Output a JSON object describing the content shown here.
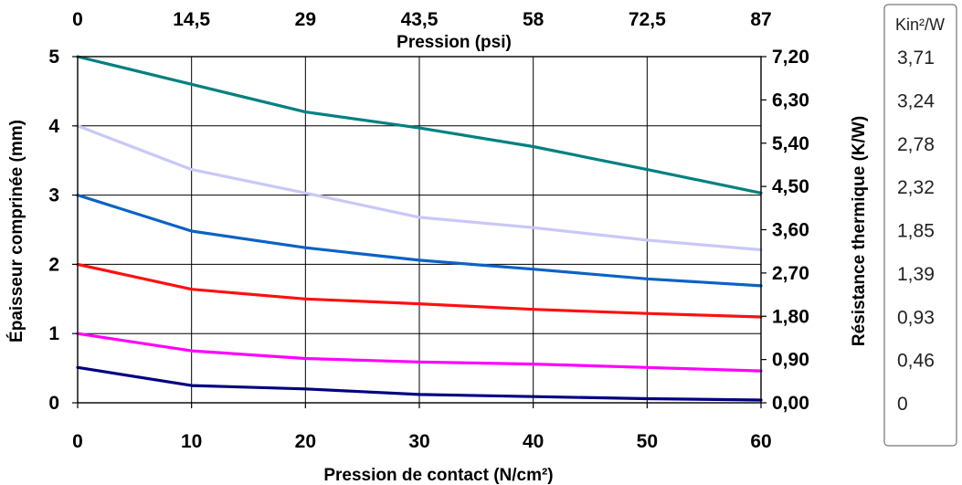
{
  "chart_data": {
    "type": "line",
    "xlabel_bottom": "Pression de contact  (N/cm²)",
    "xlabel_top": "Pression (psi)",
    "ylabel_left": "Épaisseur comprinée (mm)",
    "ylabel_right": "Résistance thermique (K/W)",
    "x_ticks": [
      "0",
      "10",
      "20",
      "30",
      "40",
      "50",
      "60"
    ],
    "x_top_ticks": [
      "0",
      "14,5",
      "29",
      "43,5",
      "58",
      "72,5",
      "87"
    ],
    "y_left_ticks": [
      "0",
      "1",
      "2",
      "3",
      "4",
      "5"
    ],
    "y_right_ticks": [
      "0,00",
      "0,90",
      "1,80",
      "2,70",
      "3,60",
      "4,50",
      "5,40",
      "6,30",
      "7,20"
    ],
    "xlim": [
      0,
      60
    ],
    "ylim": [
      0,
      5
    ],
    "grid": true,
    "series": [
      {
        "color": "#008080",
        "x": [
          0,
          10,
          20,
          30,
          40,
          50,
          60
        ],
        "y": [
          5.0,
          4.6,
          4.2,
          3.97,
          3.7,
          3.37,
          3.03
        ]
      },
      {
        "color": "#c8c8f8",
        "x": [
          0,
          10,
          20,
          30,
          40,
          50,
          60
        ],
        "y": [
          4.0,
          3.37,
          3.03,
          2.68,
          2.53,
          2.35,
          2.21
        ]
      },
      {
        "color": "#0b62c4",
        "x": [
          0,
          10,
          20,
          30,
          40,
          50,
          60
        ],
        "y": [
          3.0,
          2.48,
          2.24,
          2.06,
          1.93,
          1.79,
          1.69
        ]
      },
      {
        "color": "#ff1010",
        "x": [
          0,
          10,
          20,
          30,
          40,
          50,
          60
        ],
        "y": [
          2.0,
          1.64,
          1.5,
          1.43,
          1.35,
          1.29,
          1.24
        ]
      },
      {
        "color": "#ff00ff",
        "x": [
          0,
          10,
          20,
          30,
          40,
          50,
          60
        ],
        "y": [
          1.0,
          0.75,
          0.64,
          0.59,
          0.56,
          0.51,
          0.46
        ]
      },
      {
        "color": "#000080",
        "x": [
          0,
          10,
          20,
          30,
          40,
          50,
          60
        ],
        "y": [
          0.51,
          0.25,
          0.2,
          0.12,
          0.09,
          0.06,
          0.04
        ]
      }
    ]
  },
  "kin_panel": {
    "unit": "Kin²/W",
    "values": [
      "3,71",
      "3,24",
      "2,78",
      "2,32",
      "1,85",
      "1,39",
      "0,93",
      "0,46",
      "0"
    ]
  }
}
